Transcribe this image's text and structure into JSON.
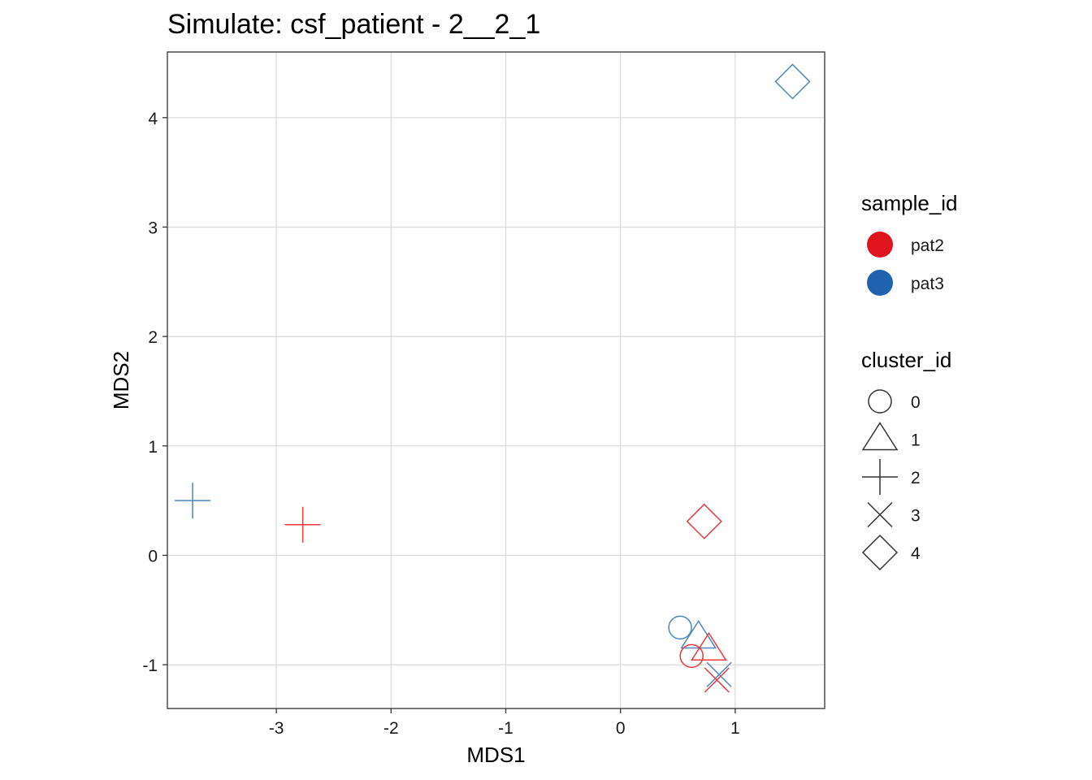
{
  "chart_data": {
    "type": "scatter",
    "title": "Simulate: csf_patient - 2__2_1",
    "xlabel": "MDS1",
    "ylabel": "MDS2",
    "xlim": [
      -3.95,
      1.78
    ],
    "ylim": [
      -1.4,
      4.6
    ],
    "xticks": [
      -3,
      -2,
      -1,
      0,
      1
    ],
    "yticks": [
      -1,
      0,
      1,
      2,
      3,
      4
    ],
    "grid": true,
    "legend_position": "right",
    "sample_legend": {
      "title": "sample_id",
      "entries": [
        {
          "label": "pat2",
          "color": "#e0141e"
        },
        {
          "label": "pat3",
          "color": "#1f63b0"
        }
      ]
    },
    "cluster_legend": {
      "title": "cluster_id",
      "entries": [
        {
          "label": "0",
          "shape": "circle"
        },
        {
          "label": "1",
          "shape": "triangle"
        },
        {
          "label": "2",
          "shape": "plus"
        },
        {
          "label": "3",
          "shape": "cross"
        },
        {
          "label": "4",
          "shape": "diamond"
        }
      ]
    },
    "point_colors": {
      "pat2": "#e8393e",
      "pat3": "#4a86c0"
    },
    "points": [
      {
        "sample": "pat3",
        "cluster": "4",
        "x": 1.5,
        "y": 4.33
      },
      {
        "sample": "pat3",
        "cluster": "2",
        "x": -3.73,
        "y": 0.5
      },
      {
        "sample": "pat2",
        "cluster": "2",
        "x": -2.77,
        "y": 0.28
      },
      {
        "sample": "pat2",
        "cluster": "4",
        "x": 0.73,
        "y": 0.31
      },
      {
        "sample": "pat3",
        "cluster": "0",
        "x": 0.52,
        "y": -0.66
      },
      {
        "sample": "pat3",
        "cluster": "1",
        "x": 0.68,
        "y": -0.75
      },
      {
        "sample": "pat2",
        "cluster": "1",
        "x": 0.77,
        "y": -0.86
      },
      {
        "sample": "pat2",
        "cluster": "0",
        "x": 0.62,
        "y": -0.92
      },
      {
        "sample": "pat3",
        "cluster": "3",
        "x": 0.86,
        "y": -1.09
      },
      {
        "sample": "pat2",
        "cluster": "3",
        "x": 0.84,
        "y": -1.14
      }
    ]
  }
}
